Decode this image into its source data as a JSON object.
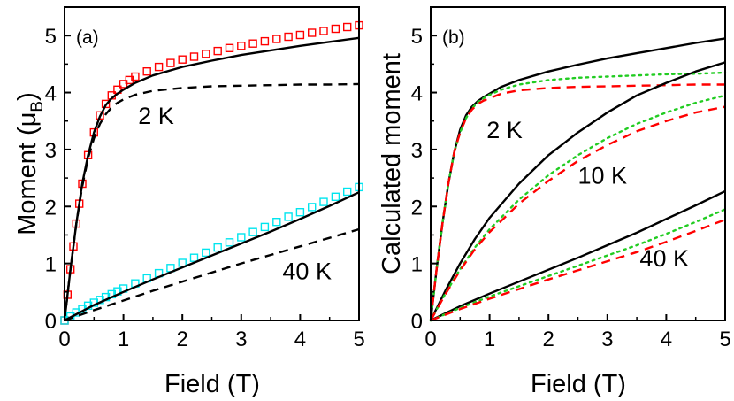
{
  "chart_data": [
    {
      "type": "line",
      "panel_label": "(a)",
      "xlabel": "Field (T)",
      "ylabel": "Moment (μ",
      "ylabel_sub": "B",
      "ylabel_close": ")",
      "xlim": [
        0,
        5
      ],
      "ylim": [
        0,
        5.5
      ],
      "xticks": [
        "0",
        "1",
        "2",
        "3",
        "4",
        "5"
      ],
      "yticks": [
        "0",
        "1",
        "2",
        "3",
        "4",
        "5"
      ],
      "annotations": [
        {
          "text": "2 K",
          "x": 1.25,
          "y": 3.45
        },
        {
          "text": "40 K",
          "x": 3.7,
          "y": 0.72
        }
      ],
      "series": [
        {
          "style": "markers-open-square",
          "color": "#ff0000",
          "x": [
            0,
            0.05,
            0.1,
            0.15,
            0.2,
            0.25,
            0.3,
            0.4,
            0.5,
            0.6,
            0.7,
            0.8,
            0.9,
            1.0,
            1.1,
            1.2,
            1.4,
            1.6,
            1.8,
            2.0,
            2.2,
            2.4,
            2.6,
            2.8,
            3.0,
            3.2,
            3.4,
            3.6,
            3.8,
            4.0,
            4.2,
            4.4,
            4.6,
            4.8,
            5.0
          ],
          "y": [
            0,
            0.45,
            0.9,
            1.3,
            1.7,
            2.05,
            2.4,
            2.9,
            3.3,
            3.6,
            3.8,
            3.95,
            4.05,
            4.15,
            4.22,
            4.28,
            4.37,
            4.45,
            4.52,
            4.58,
            4.63,
            4.68,
            4.73,
            4.78,
            4.82,
            4.86,
            4.9,
            4.94,
            4.98,
            5.01,
            5.05,
            5.08,
            5.12,
            5.15,
            5.18
          ]
        },
        {
          "style": "solid",
          "color": "#000000",
          "x": [
            0,
            0.1,
            0.2,
            0.3,
            0.4,
            0.5,
            0.6,
            0.7,
            0.8,
            0.9,
            1.0,
            1.2,
            1.5,
            2.0,
            2.5,
            3.0,
            3.5,
            4.0,
            4.5,
            5.0
          ],
          "y": [
            0,
            0.9,
            1.7,
            2.4,
            2.9,
            3.3,
            3.58,
            3.78,
            3.9,
            3.98,
            4.05,
            4.17,
            4.3,
            4.45,
            4.56,
            4.66,
            4.74,
            4.82,
            4.89,
            4.96
          ]
        },
        {
          "style": "dashed",
          "color": "#000000",
          "x": [
            0,
            0.1,
            0.2,
            0.3,
            0.4,
            0.5,
            0.6,
            0.7,
            0.8,
            0.9,
            1.0,
            1.2,
            1.5,
            2.0,
            2.5,
            3.0,
            3.5,
            4.0,
            4.5,
            5.0
          ],
          "y": [
            0,
            0.9,
            1.7,
            2.35,
            2.85,
            3.2,
            3.45,
            3.62,
            3.74,
            3.82,
            3.88,
            3.96,
            4.03,
            4.08,
            4.11,
            4.12,
            4.13,
            4.14,
            4.14,
            4.15
          ]
        },
        {
          "style": "markers-open-square",
          "color": "#00e5ee",
          "x": [
            0,
            0.1,
            0.2,
            0.3,
            0.4,
            0.5,
            0.6,
            0.7,
            0.8,
            0.9,
            1.0,
            1.2,
            1.4,
            1.6,
            1.8,
            2.0,
            2.2,
            2.4,
            2.6,
            2.8,
            3.0,
            3.2,
            3.4,
            3.6,
            3.8,
            4.0,
            4.2,
            4.4,
            4.6,
            4.8,
            5.0
          ],
          "y": [
            0,
            0.07,
            0.14,
            0.2,
            0.26,
            0.31,
            0.36,
            0.41,
            0.46,
            0.51,
            0.56,
            0.65,
            0.74,
            0.83,
            0.92,
            1.01,
            1.1,
            1.19,
            1.28,
            1.37,
            1.46,
            1.55,
            1.64,
            1.73,
            1.82,
            1.9,
            1.99,
            2.08,
            2.17,
            2.26,
            2.34
          ]
        },
        {
          "style": "solid",
          "color": "#000000",
          "x": [
            0,
            0.5,
            1.0,
            1.5,
            2.0,
            2.5,
            3.0,
            3.5,
            4.0,
            4.5,
            5.0
          ],
          "y": [
            0,
            0.27,
            0.5,
            0.72,
            0.93,
            1.14,
            1.35,
            1.56,
            1.78,
            2.01,
            2.25
          ]
        },
        {
          "style": "dashed",
          "color": "#000000",
          "x": [
            0,
            0.5,
            1.0,
            1.5,
            2.0,
            2.5,
            3.0,
            3.5,
            4.0,
            4.5,
            5.0
          ],
          "y": [
            0,
            0.18,
            0.35,
            0.52,
            0.68,
            0.84,
            1.0,
            1.15,
            1.3,
            1.45,
            1.6
          ]
        }
      ]
    },
    {
      "type": "line",
      "panel_label": "(b)",
      "xlabel": "Field (T)",
      "ylabel": "Calculated moment",
      "xlim": [
        0,
        5
      ],
      "ylim": [
        0,
        5.5
      ],
      "xticks": [
        "0",
        "1",
        "2",
        "3",
        "4",
        "5"
      ],
      "yticks": [
        "0",
        "1",
        "2",
        "3",
        "4",
        "5"
      ],
      "annotations": [
        {
          "text": "2 K",
          "x": 0.95,
          "y": 3.2
        },
        {
          "text": "10 K",
          "x": 2.5,
          "y": 2.4
        },
        {
          "text": "40 K",
          "x": 3.55,
          "y": 0.95
        }
      ],
      "series": [
        {
          "style": "solid",
          "color": "#000000",
          "x": [
            0,
            0.1,
            0.2,
            0.3,
            0.4,
            0.5,
            0.6,
            0.7,
            0.8,
            0.9,
            1.0,
            1.2,
            1.5,
            2.0,
            2.5,
            3.0,
            3.5,
            4.0,
            4.5,
            5.0
          ],
          "y": [
            0,
            0.9,
            1.7,
            2.4,
            2.95,
            3.35,
            3.6,
            3.75,
            3.85,
            3.92,
            3.98,
            4.1,
            4.22,
            4.37,
            4.49,
            4.6,
            4.69,
            4.78,
            4.87,
            4.95
          ]
        },
        {
          "style": "dotted",
          "color": "#22cc22",
          "x": [
            0,
            0.1,
            0.2,
            0.3,
            0.4,
            0.5,
            0.6,
            0.7,
            0.8,
            0.9,
            1.0,
            1.2,
            1.5,
            2.0,
            2.5,
            3.0,
            3.5,
            4.0,
            4.5,
            5.0
          ],
          "y": [
            0,
            0.9,
            1.7,
            2.4,
            2.95,
            3.3,
            3.55,
            3.72,
            3.83,
            3.9,
            3.96,
            4.05,
            4.14,
            4.22,
            4.26,
            4.28,
            4.3,
            4.32,
            4.33,
            4.35
          ]
        },
        {
          "style": "dashed",
          "color": "#ff0000",
          "x": [
            0,
            0.1,
            0.2,
            0.3,
            0.4,
            0.5,
            0.6,
            0.7,
            0.8,
            0.9,
            1.0,
            1.2,
            1.5,
            2.0,
            2.5,
            3.0,
            3.5,
            4.0,
            4.5,
            5.0
          ],
          "y": [
            0,
            0.9,
            1.7,
            2.4,
            2.95,
            3.3,
            3.55,
            3.7,
            3.8,
            3.86,
            3.9,
            3.98,
            4.04,
            4.08,
            4.1,
            4.11,
            4.12,
            4.13,
            4.14,
            4.14
          ]
        },
        {
          "style": "solid",
          "color": "#000000",
          "x": [
            0,
            0.25,
            0.5,
            0.75,
            1.0,
            1.5,
            2.0,
            2.5,
            3.0,
            3.5,
            4.0,
            4.5,
            5.0
          ],
          "y": [
            0,
            0.52,
            1.0,
            1.43,
            1.8,
            2.4,
            2.9,
            3.3,
            3.65,
            3.95,
            4.17,
            4.37,
            4.53
          ]
        },
        {
          "style": "dotted",
          "color": "#22cc22",
          "x": [
            0,
            0.25,
            0.5,
            0.75,
            1.0,
            1.5,
            2.0,
            2.5,
            3.0,
            3.5,
            4.0,
            4.5,
            5.0
          ],
          "y": [
            0,
            0.47,
            0.9,
            1.28,
            1.6,
            2.12,
            2.55,
            2.9,
            3.2,
            3.45,
            3.65,
            3.82,
            3.95
          ]
        },
        {
          "style": "dashed",
          "color": "#ff0000",
          "x": [
            0,
            0.25,
            0.5,
            0.75,
            1.0,
            1.5,
            2.0,
            2.5,
            3.0,
            3.5,
            4.0,
            4.5,
            5.0
          ],
          "y": [
            0,
            0.46,
            0.88,
            1.25,
            1.55,
            2.05,
            2.45,
            2.8,
            3.08,
            3.32,
            3.5,
            3.65,
            3.75
          ]
        },
        {
          "style": "solid",
          "color": "#000000",
          "x": [
            0,
            0.5,
            1.0,
            1.5,
            2.0,
            2.5,
            3.0,
            3.5,
            4.0,
            4.5,
            5.0
          ],
          "y": [
            0,
            0.25,
            0.47,
            0.68,
            0.89,
            1.1,
            1.32,
            1.54,
            1.78,
            2.02,
            2.27
          ]
        },
        {
          "style": "dotted",
          "color": "#22cc22",
          "x": [
            0,
            0.5,
            1.0,
            1.5,
            2.0,
            2.5,
            3.0,
            3.5,
            4.0,
            4.5,
            5.0
          ],
          "y": [
            0,
            0.22,
            0.42,
            0.6,
            0.78,
            0.96,
            1.14,
            1.32,
            1.52,
            1.73,
            1.95
          ]
        },
        {
          "style": "dashed",
          "color": "#ff0000",
          "x": [
            0,
            0.5,
            1.0,
            1.5,
            2.0,
            2.5,
            3.0,
            3.5,
            4.0,
            4.5,
            5.0
          ],
          "y": [
            0,
            0.2,
            0.38,
            0.55,
            0.72,
            0.88,
            1.04,
            1.2,
            1.38,
            1.57,
            1.77
          ]
        }
      ]
    }
  ]
}
